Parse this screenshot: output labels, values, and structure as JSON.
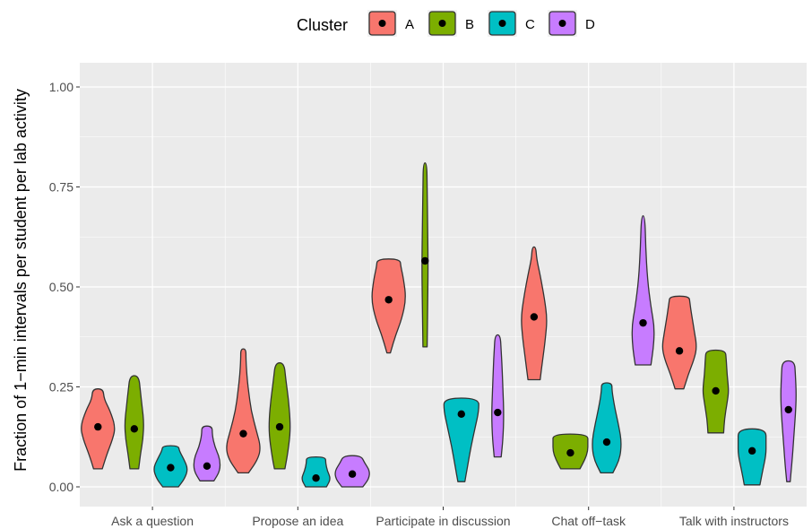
{
  "chart_data": {
    "type": "violin",
    "ylabel": "Fraction of 1−min intervals per student per lab activity",
    "xlabel": "",
    "ylim": [
      0,
      1.05
    ],
    "yticks": [
      "0.00",
      "0.25",
      "0.50",
      "0.75",
      "1.00"
    ],
    "ytick_values": [
      0,
      0.25,
      0.5,
      0.75,
      1.0
    ],
    "categories": [
      "Ask a question",
      "Propose an idea",
      "Participate in discussion",
      "Chat off−task",
      "Talk with instructors"
    ],
    "legend": {
      "title": "Cluster",
      "position": "top",
      "items": [
        {
          "label": "A",
          "color": "#F8766D"
        },
        {
          "label": "B",
          "color": "#7CAE00"
        },
        {
          "label": "C",
          "color": "#00BFC4"
        },
        {
          "label": "D",
          "color": "#C77CFF"
        }
      ]
    },
    "grid": true,
    "background": "#EBEBEB",
    "series": [
      {
        "name": "A",
        "color": "#F8766D",
        "violins": [
          {
            "min": 0.045,
            "max": 0.245,
            "mean": 0.15,
            "profile": [
              [
                0.045,
                0.25
              ],
              [
                0.08,
                0.5
              ],
              [
                0.12,
                0.85
              ],
              [
                0.15,
                1.0
              ],
              [
                0.19,
                0.7
              ],
              [
                0.22,
                0.35
              ],
              [
                0.245,
                0.3
              ]
            ]
          },
          {
            "min": 0.035,
            "max": 0.345,
            "mean": 0.133,
            "profile": [
              [
                0.035,
                0.3
              ],
              [
                0.07,
                0.85
              ],
              [
                0.1,
                1.0
              ],
              [
                0.14,
                0.75
              ],
              [
                0.19,
                0.45
              ],
              [
                0.24,
                0.3
              ],
              [
                0.28,
                0.2
              ],
              [
                0.32,
                0.15
              ],
              [
                0.345,
                0.15
              ]
            ]
          },
          {
            "min": 0.335,
            "max": 0.57,
            "mean": 0.468,
            "profile": [
              [
                0.335,
                0.1
              ],
              [
                0.38,
                0.4
              ],
              [
                0.42,
                0.75
              ],
              [
                0.47,
                1.0
              ],
              [
                0.52,
                0.85
              ],
              [
                0.55,
                0.7
              ],
              [
                0.57,
                0.65
              ]
            ]
          },
          {
            "min": 0.268,
            "max": 0.6,
            "mean": 0.425,
            "profile": [
              [
                0.268,
                0.35
              ],
              [
                0.32,
                0.5
              ],
              [
                0.37,
                0.65
              ],
              [
                0.42,
                0.75
              ],
              [
                0.47,
                0.6
              ],
              [
                0.53,
                0.35
              ],
              [
                0.57,
                0.15
              ],
              [
                0.6,
                0.1
              ]
            ]
          },
          {
            "min": 0.245,
            "max": 0.477,
            "mean": 0.34,
            "profile": [
              [
                0.245,
                0.25
              ],
              [
                0.28,
                0.5
              ],
              [
                0.32,
                0.85
              ],
              [
                0.35,
                1.0
              ],
              [
                0.39,
                0.85
              ],
              [
                0.43,
                0.7
              ],
              [
                0.46,
                0.6
              ],
              [
                0.477,
                0.55
              ]
            ]
          }
        ]
      },
      {
        "name": "B",
        "color": "#7CAE00",
        "violins": [
          {
            "min": 0.045,
            "max": 0.278,
            "mean": 0.145,
            "profile": [
              [
                0.045,
                0.25
              ],
              [
                0.08,
                0.35
              ],
              [
                0.12,
                0.5
              ],
              [
                0.16,
                0.55
              ],
              [
                0.2,
                0.45
              ],
              [
                0.24,
                0.35
              ],
              [
                0.278,
                0.25
              ]
            ]
          },
          {
            "min": 0.045,
            "max": 0.31,
            "mean": 0.15,
            "profile": [
              [
                0.045,
                0.3
              ],
              [
                0.08,
                0.45
              ],
              [
                0.13,
                0.6
              ],
              [
                0.17,
                0.6
              ],
              [
                0.22,
                0.5
              ],
              [
                0.27,
                0.35
              ],
              [
                0.31,
                0.25
              ]
            ]
          },
          {
            "min": 0.35,
            "max": 0.81,
            "mean": 0.565,
            "profile": [
              [
                0.35,
                0.12
              ],
              [
                0.45,
                0.15
              ],
              [
                0.55,
                0.18
              ],
              [
                0.65,
                0.15
              ],
              [
                0.75,
                0.12
              ],
              [
                0.81,
                0.1
              ]
            ]
          },
          {
            "min": 0.045,
            "max": 0.132,
            "mean": 0.085,
            "profile": [
              [
                0.045,
                0.55
              ],
              [
                0.07,
                0.85
              ],
              [
                0.09,
                1.0
              ],
              [
                0.11,
                1.0
              ],
              [
                0.132,
                1.0
              ]
            ]
          },
          {
            "min": 0.135,
            "max": 0.342,
            "mean": 0.24,
            "profile": [
              [
                0.135,
                0.45
              ],
              [
                0.17,
                0.5
              ],
              [
                0.21,
                0.65
              ],
              [
                0.24,
                0.75
              ],
              [
                0.28,
                0.65
              ],
              [
                0.32,
                0.6
              ],
              [
                0.342,
                0.55
              ]
            ]
          }
        ]
      },
      {
        "name": "C",
        "color": "#00BFC4",
        "violins": [
          {
            "min": 0.0,
            "max": 0.103,
            "mean": 0.048,
            "profile": [
              [
                0.0,
                0.45
              ],
              [
                0.02,
                0.8
              ],
              [
                0.045,
                1.0
              ],
              [
                0.07,
                0.75
              ],
              [
                0.09,
                0.5
              ],
              [
                0.103,
                0.45
              ]
            ]
          },
          {
            "min": 0.0,
            "max": 0.075,
            "mean": 0.022,
            "profile": [
              [
                0.0,
                0.6
              ],
              [
                0.02,
                0.85
              ],
              [
                0.04,
                0.65
              ],
              [
                0.06,
                0.55
              ],
              [
                0.075,
                0.55
              ]
            ]
          },
          {
            "min": 0.013,
            "max": 0.222,
            "mean": 0.182,
            "profile": [
              [
                0.013,
                0.2
              ],
              [
                0.05,
                0.35
              ],
              [
                0.1,
                0.55
              ],
              [
                0.15,
                0.8
              ],
              [
                0.19,
                1.0
              ],
              [
                0.222,
                1.0
              ]
            ]
          },
          {
            "min": 0.035,
            "max": 0.26,
            "mean": 0.112,
            "profile": [
              [
                0.035,
                0.35
              ],
              [
                0.07,
                0.75
              ],
              [
                0.11,
                0.85
              ],
              [
                0.15,
                0.7
              ],
              [
                0.2,
                0.45
              ],
              [
                0.24,
                0.3
              ],
              [
                0.26,
                0.3
              ]
            ]
          },
          {
            "min": 0.005,
            "max": 0.145,
            "mean": 0.09,
            "profile": [
              [
                0.005,
                0.45
              ],
              [
                0.04,
                0.6
              ],
              [
                0.08,
                0.8
              ],
              [
                0.11,
                0.8
              ],
              [
                0.145,
                0.8
              ]
            ]
          }
        ]
      },
      {
        "name": "D",
        "color": "#C77CFF",
        "violins": [
          {
            "min": 0.015,
            "max": 0.152,
            "mean": 0.052,
            "profile": [
              [
                0.015,
                0.4
              ],
              [
                0.04,
                0.75
              ],
              [
                0.07,
                0.75
              ],
              [
                0.1,
                0.45
              ],
              [
                0.13,
                0.3
              ],
              [
                0.152,
                0.3
              ]
            ]
          },
          {
            "min": 0.0,
            "max": 0.078,
            "mean": 0.032,
            "profile": [
              [
                0.0,
                0.6
              ],
              [
                0.02,
                0.95
              ],
              [
                0.04,
                1.0
              ],
              [
                0.06,
                0.7
              ],
              [
                0.078,
                0.5
              ]
            ]
          },
          {
            "min": 0.075,
            "max": 0.38,
            "mean": 0.186,
            "profile": [
              [
                0.075,
                0.2
              ],
              [
                0.12,
                0.3
              ],
              [
                0.18,
                0.35
              ],
              [
                0.24,
                0.3
              ],
              [
                0.3,
                0.25
              ],
              [
                0.34,
                0.2
              ],
              [
                0.38,
                0.15
              ]
            ]
          },
          {
            "min": 0.305,
            "max": 0.678,
            "mean": 0.41,
            "profile": [
              [
                0.305,
                0.45
              ],
              [
                0.35,
                0.6
              ],
              [
                0.4,
                0.65
              ],
              [
                0.45,
                0.45
              ],
              [
                0.52,
                0.25
              ],
              [
                0.6,
                0.15
              ],
              [
                0.678,
                0.1
              ]
            ]
          },
          {
            "min": 0.013,
            "max": 0.315,
            "mean": 0.193,
            "profile": [
              [
                0.013,
                0.1
              ],
              [
                0.06,
                0.2
              ],
              [
                0.12,
                0.3
              ],
              [
                0.18,
                0.4
              ],
              [
                0.23,
                0.45
              ],
              [
                0.28,
                0.4
              ],
              [
                0.315,
                0.35
              ]
            ]
          }
        ]
      }
    ]
  }
}
